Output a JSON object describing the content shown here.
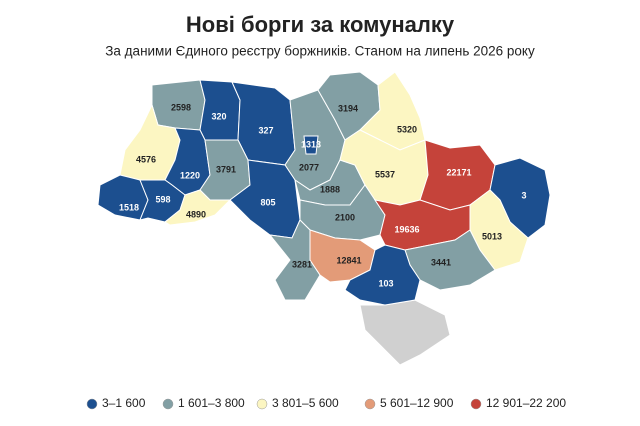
{
  "title": "Нові борги за комуналку",
  "subtitle": "За даними Єдиного реєстру боржників. Станом на липень 2026 року",
  "legend": [
    {
      "label": "3–1 600",
      "color": "#1c4f8f"
    },
    {
      "label": "1 601–3 800",
      "color": "#829fa4"
    },
    {
      "label": "3 801–5 600",
      "color": "#fcf6c2"
    },
    {
      "label": "5 601–12 900",
      "color": "#e39b78"
    },
    {
      "label": "12 901–22 200",
      "color": "#c5433a"
    }
  ],
  "regions": [
    {
      "value": 2598,
      "color": "#829fa4"
    },
    {
      "value": 320,
      "color": "#1c4f8f"
    },
    {
      "value": 327,
      "color": "#1c4f8f"
    },
    {
      "value": 2077,
      "color": "#829fa4"
    },
    {
      "value": 1313,
      "color": "#1c4f8f"
    },
    {
      "value": 3194,
      "color": "#829fa4"
    },
    {
      "value": 5320,
      "color": "#fcf6c2"
    },
    {
      "value": 4576,
      "color": "#fcf6c2"
    },
    {
      "value": 1220,
      "color": "#1c4f8f"
    },
    {
      "value": 3791,
      "color": "#829fa4"
    },
    {
      "value": 1518,
      "color": "#1c4f8f"
    },
    {
      "value": 598,
      "color": "#1c4f8f"
    },
    {
      "value": 4890,
      "color": "#fcf6c2"
    },
    {
      "value": 805,
      "color": "#1c4f8f"
    },
    {
      "value": 1888,
      "color": "#829fa4"
    },
    {
      "value": 5537,
      "color": "#fcf6c2"
    },
    {
      "value": 22171,
      "color": "#c5433a"
    },
    {
      "value": 3,
      "color": "#1c4f8f"
    },
    {
      "value": 5013,
      "color": "#fcf6c2"
    },
    {
      "value": 2100,
      "color": "#829fa4"
    },
    {
      "value": 19636,
      "color": "#c5433a"
    },
    {
      "value": 3281,
      "color": "#829fa4"
    },
    {
      "value": 12841,
      "color": "#e39b78"
    },
    {
      "value": 3441,
      "color": "#829fa4"
    },
    {
      "value": 103,
      "color": "#1c4f8f"
    }
  ]
}
